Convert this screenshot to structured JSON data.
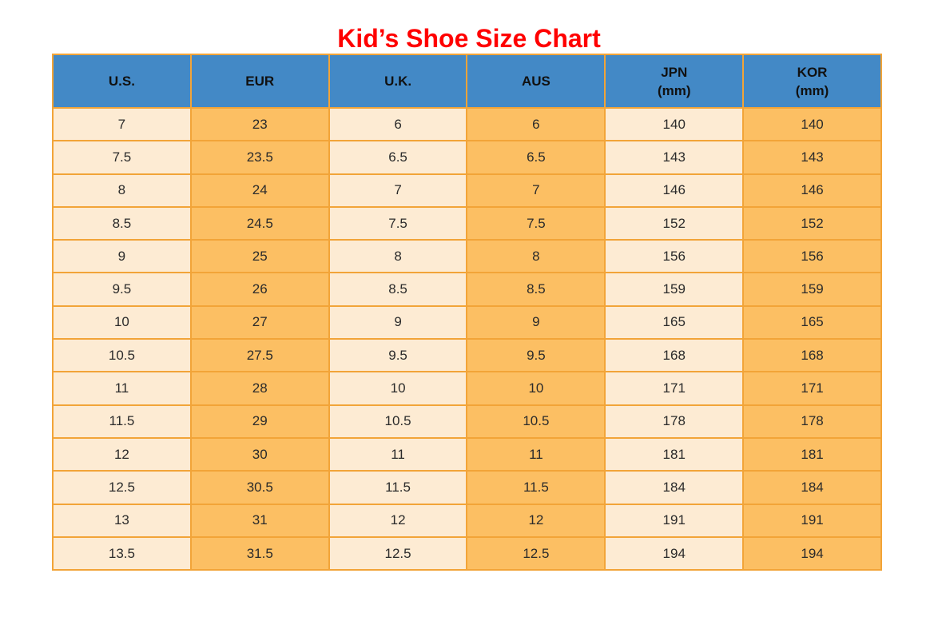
{
  "title": {
    "text": "Kid’s Shoe Size Chart"
  },
  "colors": {
    "title": "#FF0000",
    "header_bg": "#4389C6",
    "header_text": "#111111",
    "cell_light": "#FDEBD3",
    "cell_orange": "#FCBF63",
    "border": "#F2A438",
    "cell_text": "#2B2B2B",
    "page_bg": "#FFFFFF"
  },
  "chart_data": {
    "type": "table",
    "title": "Kid’s Shoe Size Chart",
    "columns": [
      {
        "label": "U.S.",
        "sublabel": "",
        "fill": "light"
      },
      {
        "label": "EUR",
        "sublabel": "",
        "fill": "orange"
      },
      {
        "label": "U.K.",
        "sublabel": "",
        "fill": "light"
      },
      {
        "label": "AUS",
        "sublabel": "",
        "fill": "orange"
      },
      {
        "label": "JPN",
        "sublabel": "(mm)",
        "fill": "light"
      },
      {
        "label": "KOR",
        "sublabel": "(mm)",
        "fill": "orange"
      }
    ],
    "rows": [
      [
        "7",
        "23",
        "6",
        "6",
        "140",
        "140"
      ],
      [
        "7.5",
        "23.5",
        "6.5",
        "6.5",
        "143",
        "143"
      ],
      [
        "8",
        "24",
        "7",
        "7",
        "146",
        "146"
      ],
      [
        "8.5",
        "24.5",
        "7.5",
        "7.5",
        "152",
        "152"
      ],
      [
        "9",
        "25",
        "8",
        "8",
        "156",
        "156"
      ],
      [
        "9.5",
        "26",
        "8.5",
        "8.5",
        "159",
        "159"
      ],
      [
        "10",
        "27",
        "9",
        "9",
        "165",
        "165"
      ],
      [
        "10.5",
        "27.5",
        "9.5",
        "9.5",
        "168",
        "168"
      ],
      [
        "11",
        "28",
        "10",
        "10",
        "171",
        "171"
      ],
      [
        "11.5",
        "29",
        "10.5",
        "10.5",
        "178",
        "178"
      ],
      [
        "12",
        "30",
        "11",
        "11",
        "181",
        "181"
      ],
      [
        "12.5",
        "30.5",
        "11.5",
        "11.5",
        "184",
        "184"
      ],
      [
        "13",
        "31",
        "12",
        "12",
        "191",
        "191"
      ],
      [
        "13.5",
        "31.5",
        "12.5",
        "12.5",
        "194",
        "194"
      ]
    ]
  }
}
